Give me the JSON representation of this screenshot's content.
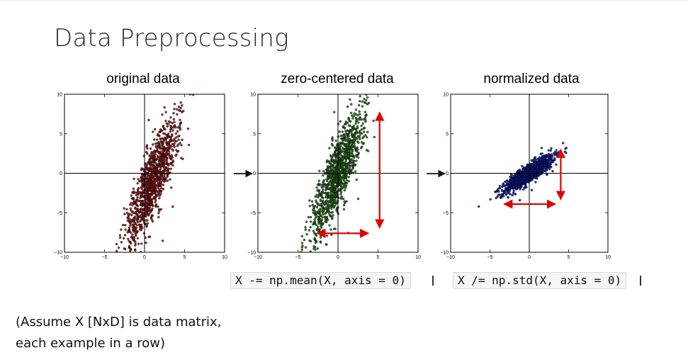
{
  "slide": {
    "title": "Data Preprocessing",
    "footnote_line1": "(Assume X [NxD] is data matrix,",
    "footnote_line2": "each example in a row)"
  },
  "panels": [
    {
      "title": "original data",
      "color": "#8b0000",
      "point_fill": "#7a1010"
    },
    {
      "title": "zero-centered data",
      "color": "#2e6b1f",
      "point_fill": "#1f5a14"
    },
    {
      "title": "normalized data",
      "color": "#0000b0",
      "point_fill": "#0a1a8a"
    }
  ],
  "code": {
    "mean": "X -= np.mean(X, axis = 0)",
    "std": "X /= np.std(X, axis = 0)"
  },
  "colors": {
    "arrow": "#e00000",
    "flow_arrow": "#111111"
  },
  "chart_data": [
    {
      "type": "scatter",
      "title": "original data",
      "xlim": [
        -10,
        10
      ],
      "ylim": [
        -10,
        10
      ],
      "x_ticks": [
        "−10",
        "−5",
        "0",
        "5",
        "10"
      ],
      "y_ticks": [
        "10",
        "5",
        "0",
        "−5",
        "−10"
      ],
      "grid": false,
      "cloud": {
        "center": [
          1.0,
          -1.0
        ],
        "major_angle_deg": 70,
        "major_sd": 4.3,
        "minor_sd": 0.9
      },
      "annotations": []
    },
    {
      "type": "scatter",
      "title": "zero-centered data",
      "xlim": [
        -10,
        10
      ],
      "ylim": [
        -10,
        10
      ],
      "x_ticks": [
        "−10",
        "−5",
        "0",
        "5",
        "10"
      ],
      "y_ticks": [
        "10",
        "5",
        "0",
        "−5",
        "−10"
      ],
      "grid": false,
      "cloud": {
        "center": [
          0,
          0
        ],
        "major_angle_deg": 70,
        "major_sd": 4.3,
        "minor_sd": 0.9
      },
      "annotations": [
        {
          "kind": "double-arrow",
          "from": [
            5.2,
            -6.9
          ],
          "to": [
            5.2,
            7.7
          ]
        },
        {
          "kind": "double-arrow",
          "from": [
            -2.6,
            -7.6
          ],
          "to": [
            3.8,
            -7.6
          ]
        }
      ]
    },
    {
      "type": "scatter",
      "title": "normalized data",
      "xlim": [
        -10,
        10
      ],
      "ylim": [
        -10,
        10
      ],
      "x_ticks": [
        "−10",
        "−5",
        "0",
        "5",
        "10"
      ],
      "y_ticks": [
        "10",
        "5",
        "0",
        "−5",
        "−10"
      ],
      "grid": false,
      "cloud": {
        "center": [
          0,
          0
        ],
        "major_angle_deg": 35,
        "major_sd": 1.9,
        "minor_sd": 0.5
      },
      "annotations": [
        {
          "kind": "double-arrow",
          "from": [
            4.0,
            -3.3
          ],
          "to": [
            4.0,
            3.0
          ]
        },
        {
          "kind": "double-arrow",
          "from": [
            -3.2,
            -3.9
          ],
          "to": [
            3.3,
            -3.9
          ]
        }
      ]
    }
  ]
}
